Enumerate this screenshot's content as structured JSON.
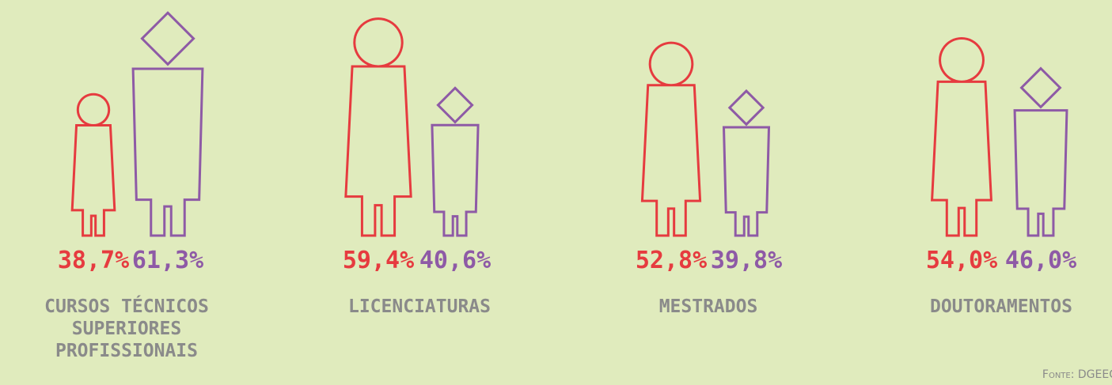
{
  "chart_data": {
    "type": "pictograph",
    "categories": [
      "CURSOS TÉCNICOS SUPERIORES PROFISSIONAIS",
      "LICENCIATURAS",
      "MESTRADOS",
      "DOUTORAMENTOS"
    ],
    "series": [
      {
        "color": "#e63b3f",
        "values": [
          38.7,
          59.4,
          52.8,
          54.0
        ],
        "value_labels": [
          "38,7%",
          "59,4%",
          "52,8%",
          "54,0%"
        ]
      },
      {
        "color": "#8e5aa6",
        "values": [
          61.3,
          40.6,
          39.8,
          46.0
        ],
        "value_labels": [
          "61,3%",
          "40,6%",
          "39,8%",
          "46,0%"
        ]
      }
    ],
    "source": "Fonte: DGEEC"
  }
}
